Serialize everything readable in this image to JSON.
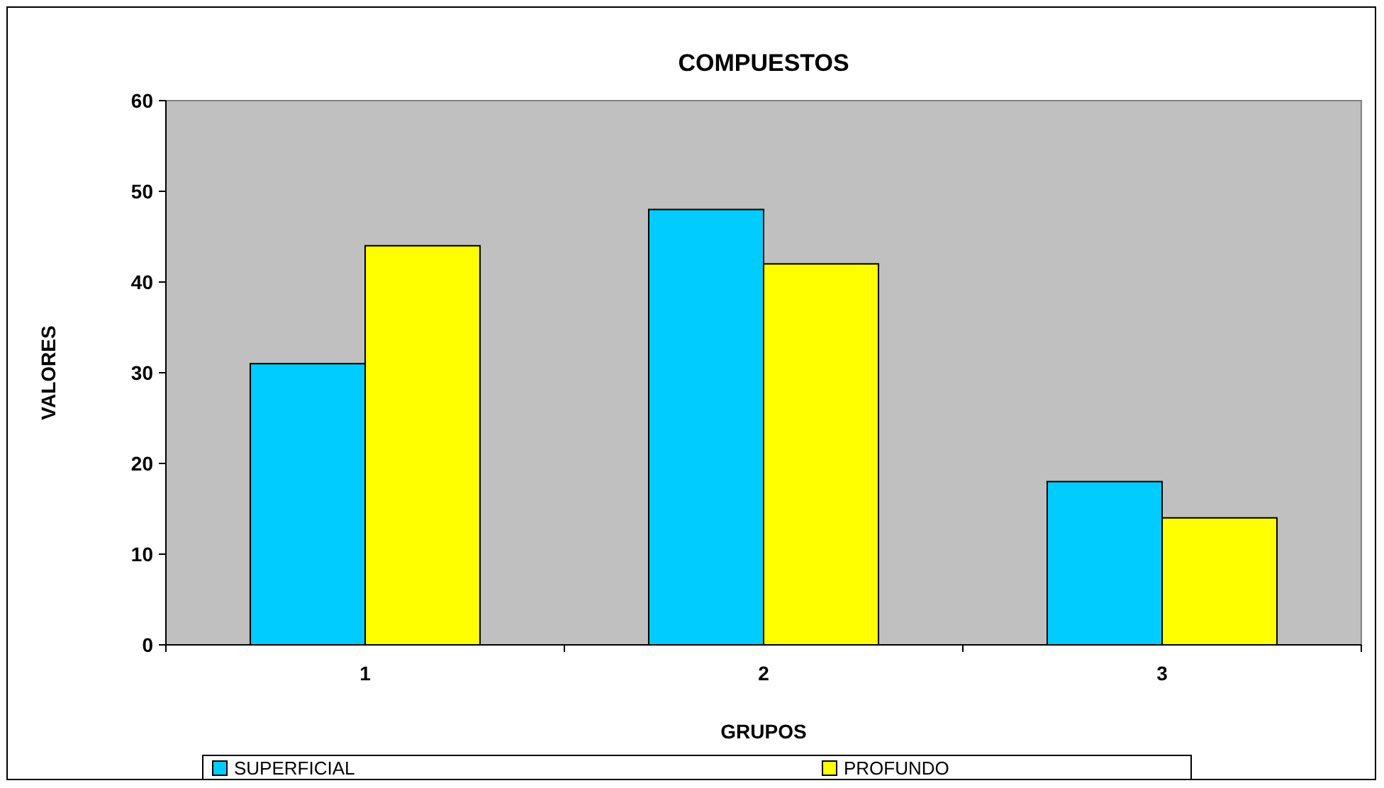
{
  "chart_data": {
    "type": "bar",
    "title": "COMPUESTOS",
    "xlabel": "GRUPOS",
    "ylabel": "VALORES",
    "categories": [
      "1",
      "2",
      "3"
    ],
    "series": [
      {
        "name": "SUPERFICIAL",
        "color": "#00ccff",
        "values": [
          31,
          48,
          18
        ]
      },
      {
        "name": "PROFUNDO",
        "color": "#ffff00",
        "values": [
          44,
          42,
          14
        ]
      }
    ],
    "ylim": [
      0,
      60
    ],
    "yticks": [
      0,
      10,
      20,
      30,
      40,
      50,
      60
    ],
    "grid": false,
    "legend": "bottom"
  }
}
